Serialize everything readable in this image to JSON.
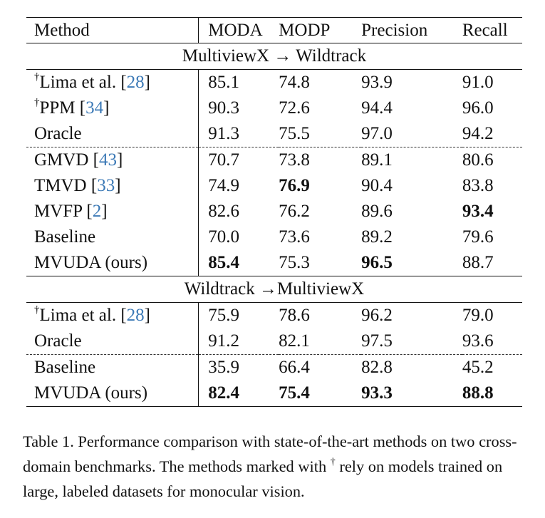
{
  "table": {
    "headers": [
      "Method",
      "MODA",
      "MODP",
      "Precision",
      "Recall"
    ],
    "sections": [
      {
        "title": "MultiviewX → Wildtrack",
        "rows": [
          {
            "dagger": "†",
            "method": "Lima et al. [",
            "cite": "28",
            "close": "]",
            "values": [
              "85.1",
              "74.8",
              "93.9",
              "91.0"
            ],
            "bold": [
              false,
              false,
              false,
              false
            ]
          },
          {
            "dagger": "†",
            "method": "PPM [",
            "cite": "34",
            "close": "]",
            "values": [
              "90.3",
              "72.6",
              "94.4",
              "96.0"
            ],
            "bold": [
              false,
              false,
              false,
              false
            ]
          },
          {
            "dagger": "",
            "method": "Oracle",
            "cite": "",
            "close": "",
            "values": [
              "91.3",
              "75.5",
              "97.0",
              "94.2"
            ],
            "bold": [
              false,
              false,
              false,
              false
            ]
          },
          {
            "dagger": "",
            "method": "GMVD [",
            "cite": "43",
            "close": "]",
            "values": [
              "70.7",
              "73.8",
              "89.1",
              "80.6"
            ],
            "bold": [
              false,
              false,
              false,
              false
            ]
          },
          {
            "dagger": "",
            "method": "TMVD [",
            "cite": "33",
            "close": "]",
            "values": [
              "74.9",
              "76.9",
              "90.4",
              "83.8"
            ],
            "bold": [
              false,
              true,
              false,
              false
            ]
          },
          {
            "dagger": "",
            "method": "MVFP [",
            "cite": "2",
            "close": "]",
            "values": [
              "82.6",
              "76.2",
              "89.6",
              "93.4"
            ],
            "bold": [
              false,
              false,
              false,
              true
            ]
          },
          {
            "dagger": "",
            "method": "Baseline",
            "cite": "",
            "close": "",
            "values": [
              "70.0",
              "73.6",
              "89.2",
              "79.6"
            ],
            "bold": [
              false,
              false,
              false,
              false
            ]
          },
          {
            "dagger": "",
            "method": "MVUDA (ours)",
            "cite": "",
            "close": "",
            "values": [
              "85.4",
              "75.3",
              "96.5",
              "88.7"
            ],
            "bold": [
              true,
              false,
              true,
              false
            ]
          }
        ]
      },
      {
        "title": "Wildtrack →MultiviewX",
        "rows": [
          {
            "dagger": "†",
            "method": "Lima et al. [",
            "cite": "28",
            "close": "]",
            "values": [
              "75.9",
              "78.6",
              "96.2",
              "79.0"
            ],
            "bold": [
              false,
              false,
              false,
              false
            ]
          },
          {
            "dagger": "",
            "method": "Oracle",
            "cite": "",
            "close": "",
            "values": [
              "91.2",
              "82.1",
              "97.5",
              "93.6"
            ],
            "bold": [
              false,
              false,
              false,
              false
            ]
          },
          {
            "dagger": "",
            "method": "Baseline",
            "cite": "",
            "close": "",
            "values": [
              "35.9",
              "66.4",
              "82.8",
              "45.2"
            ],
            "bold": [
              false,
              false,
              false,
              false
            ]
          },
          {
            "dagger": "",
            "method": "MVUDA (ours)",
            "cite": "",
            "close": "",
            "values": [
              "82.4",
              "75.4",
              "93.3",
              "88.8"
            ],
            "bold": [
              true,
              true,
              true,
              true
            ]
          }
        ]
      }
    ]
  },
  "caption": {
    "part1": "Table 1. Performance comparison with state-of-the-art methods on two cross-domain benchmarks. The methods marked with ",
    "dagger": "†",
    "part2": " rely on models trained on large, labeled datasets for monocular vision."
  }
}
